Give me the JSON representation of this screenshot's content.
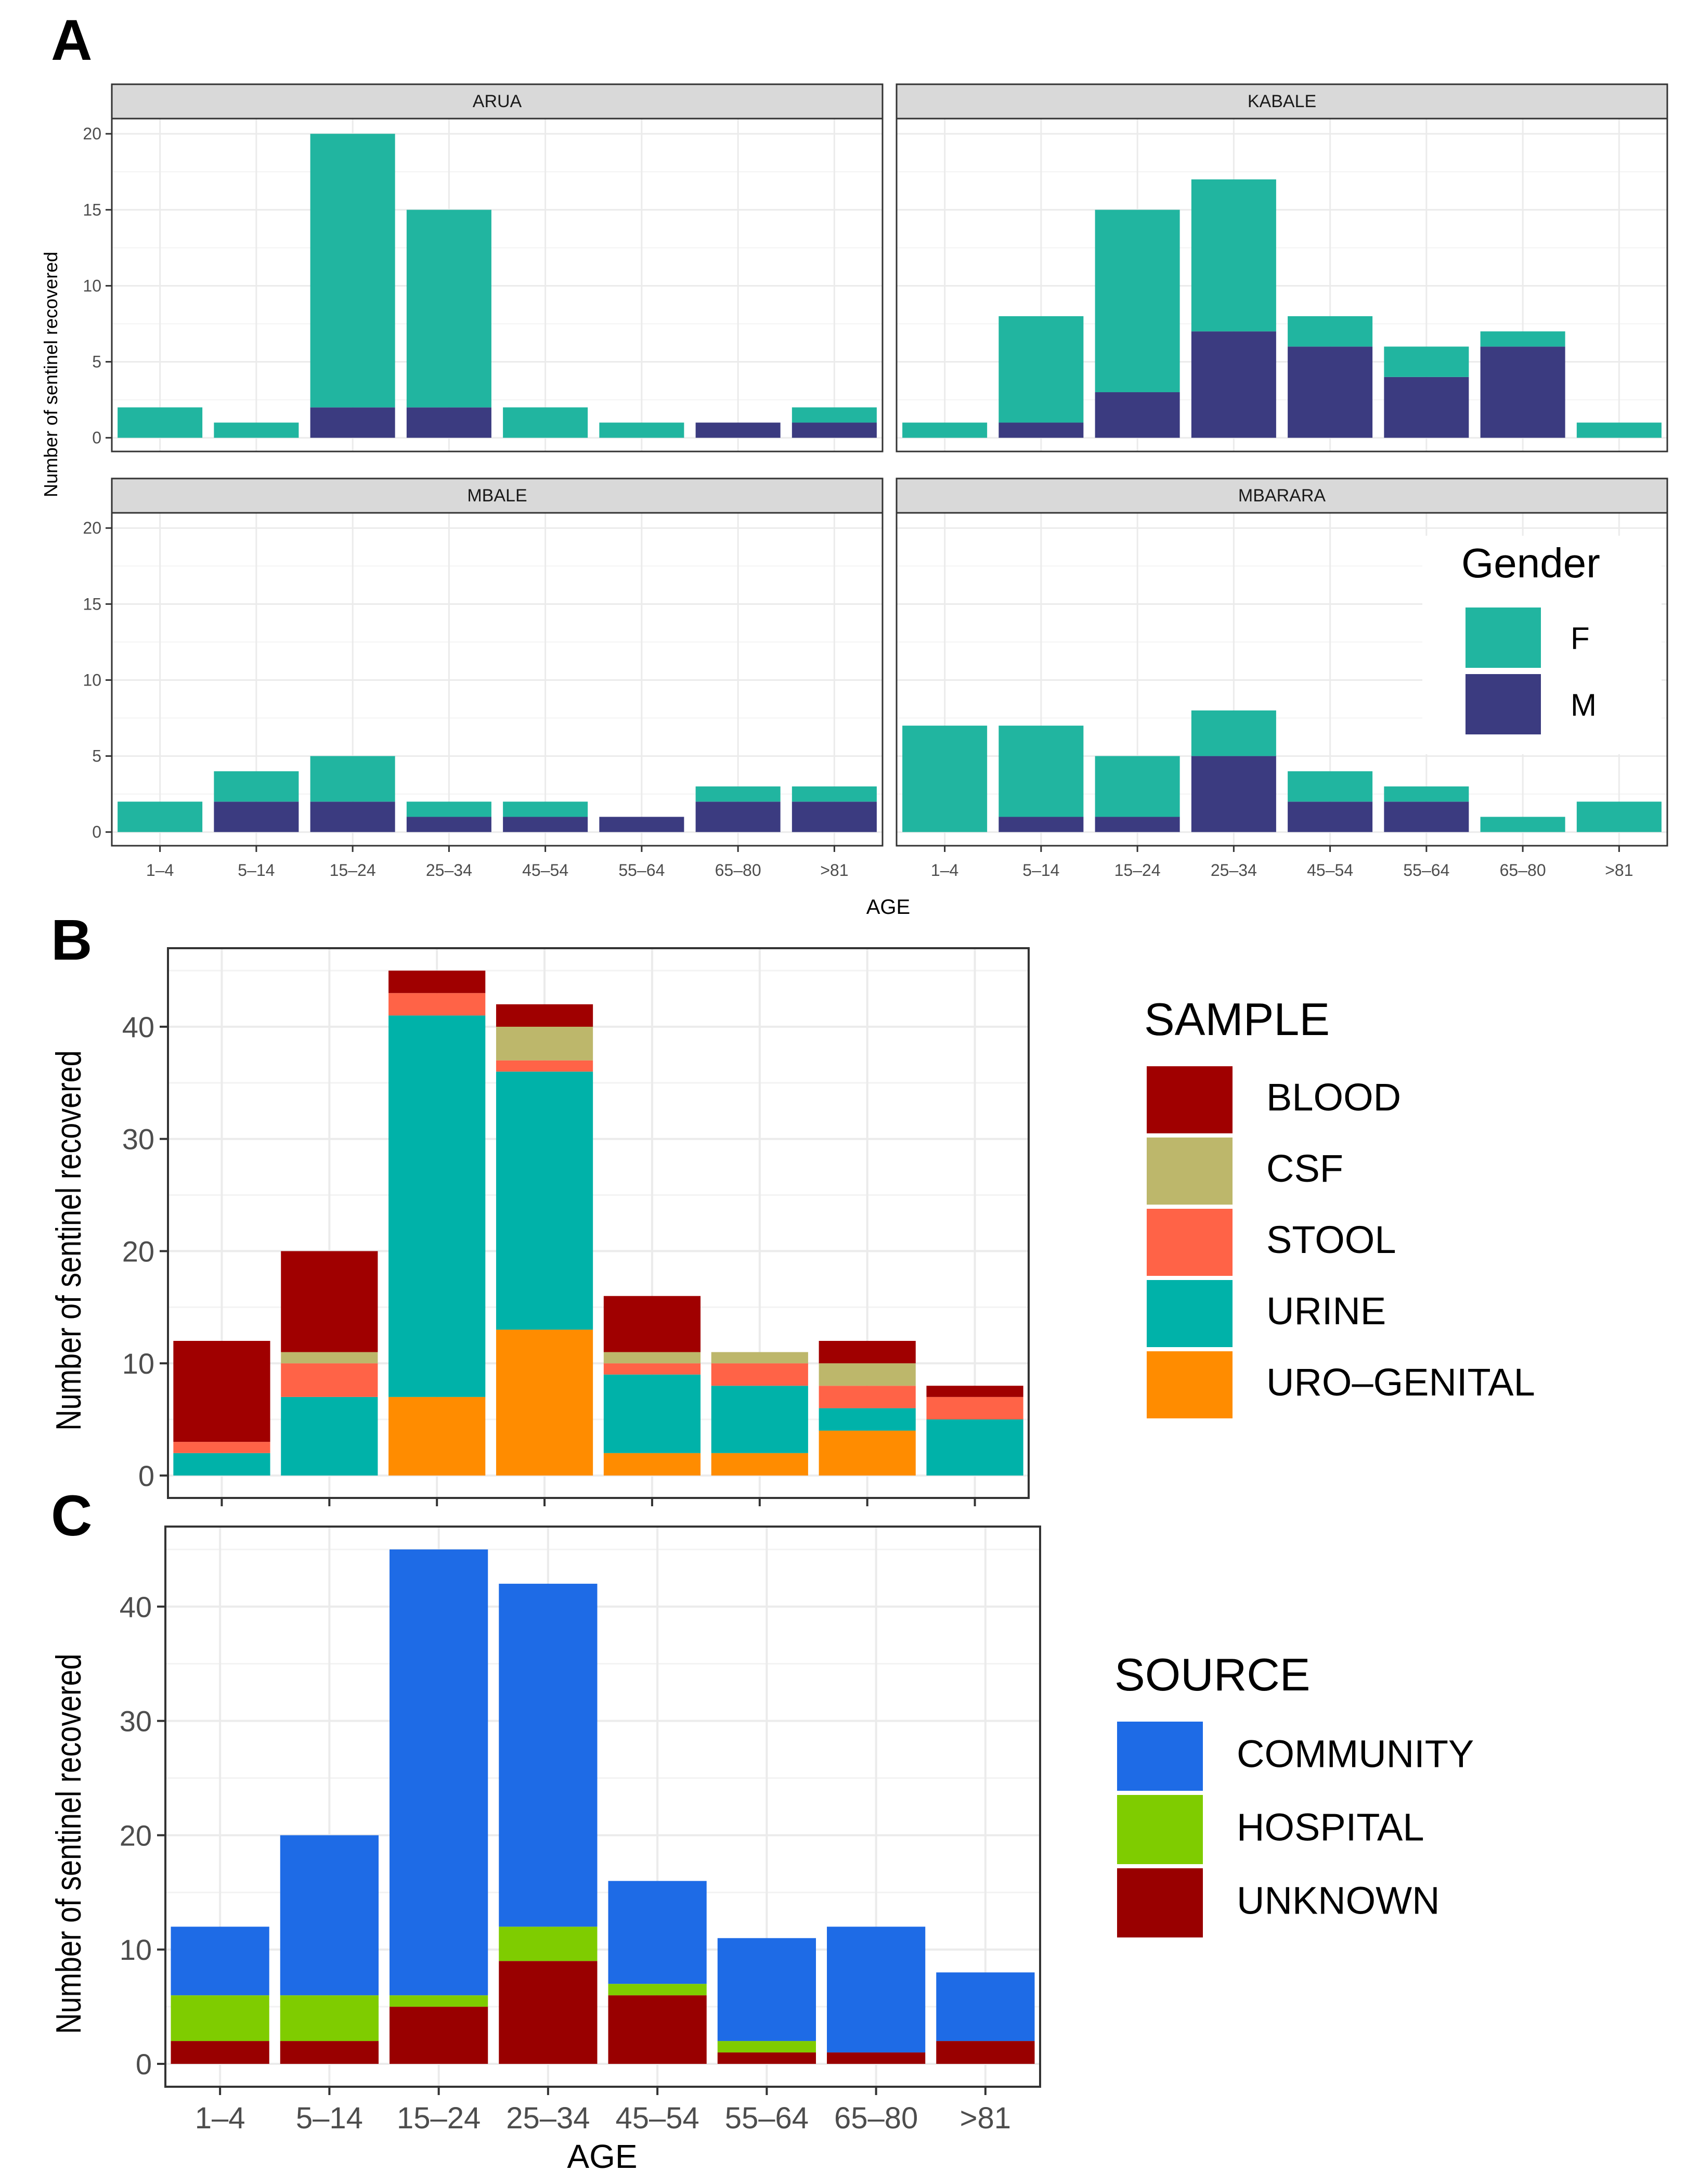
{
  "figure": {
    "panel_labels": [
      "A",
      "B",
      "C"
    ]
  },
  "chart_data": [
    {
      "type": "bar",
      "stacked": true,
      "faceted": true,
      "panel": "A",
      "xlabel": "AGE",
      "ylabel": "Number of sentinel recovered",
      "categories": [
        "1–4",
        "5–14",
        "15–24",
        "25–34",
        "45–54",
        "55–64",
        "65–80",
        ">81"
      ],
      "ylim": [
        0,
        21
      ],
      "yticks": [
        0,
        5,
        10,
        15,
        20
      ],
      "legend": {
        "title": "Gender",
        "placement": "inside-right",
        "entries": [
          {
            "label": "F",
            "color": "#21B5A0"
          },
          {
            "label": "M",
            "color": "#3B3B80"
          }
        ]
      },
      "facets": [
        {
          "name": "ARUA",
          "series": [
            {
              "name": "F",
              "values": [
                2,
                1,
                18,
                13,
                2,
                1,
                0,
                1
              ]
            },
            {
              "name": "M",
              "values": [
                0,
                0,
                2,
                2,
                0,
                0,
                1,
                1
              ]
            }
          ]
        },
        {
          "name": "KABALE",
          "series": [
            {
              "name": "F",
              "values": [
                1,
                7,
                12,
                10,
                2,
                2,
                1,
                1
              ]
            },
            {
              "name": "M",
              "values": [
                0,
                1,
                3,
                7,
                6,
                4,
                6,
                0
              ]
            }
          ]
        },
        {
          "name": "MBALE",
          "series": [
            {
              "name": "F",
              "values": [
                2,
                2,
                3,
                1,
                1,
                0,
                1,
                1
              ]
            },
            {
              "name": "M",
              "values": [
                0,
                2,
                2,
                1,
                1,
                1,
                2,
                2
              ]
            }
          ]
        },
        {
          "name": "MBARARA",
          "series": [
            {
              "name": "F",
              "values": [
                7,
                6,
                4,
                3,
                2,
                1,
                1,
                2
              ]
            },
            {
              "name": "M",
              "values": [
                0,
                1,
                1,
                5,
                2,
                2,
                0,
                0
              ]
            }
          ]
        }
      ]
    },
    {
      "type": "bar",
      "stacked": true,
      "panel": "B",
      "xlabel": "",
      "ylabel": "Number of sentinel recovered",
      "categories": [
        "1–4",
        "5–14",
        "15–24",
        "25–34",
        "45–54",
        "55–64",
        "65–80",
        ">81"
      ],
      "ylim": [
        -2,
        47
      ],
      "yticks": [
        0,
        10,
        20,
        30,
        40
      ],
      "legend": {
        "title": "SAMPLE",
        "placement": "right"
      },
      "series": [
        {
          "name": "URO–GENITAL",
          "color": "#FF8C00",
          "values": [
            0,
            0,
            7,
            13,
            2,
            2,
            4,
            0
          ]
        },
        {
          "name": "URINE",
          "color": "#00B2A9",
          "values": [
            2,
            7,
            34,
            23,
            7,
            6,
            2,
            5
          ]
        },
        {
          "name": "STOOL",
          "color": "#FF6347",
          "values": [
            1,
            3,
            2,
            1,
            1,
            2,
            2,
            2
          ]
        },
        {
          "name": "CSF",
          "color": "#BDB76B",
          "values": [
            0,
            1,
            0,
            3,
            1,
            1,
            2,
            0
          ]
        },
        {
          "name": "BLOOD",
          "color": "#A00000",
          "values": [
            9,
            9,
            2,
            2,
            5,
            0,
            2,
            1
          ]
        }
      ],
      "legend_order": [
        "BLOOD",
        "CSF",
        "STOOL",
        "URINE",
        "URO–GENITAL"
      ]
    },
    {
      "type": "bar",
      "stacked": true,
      "panel": "C",
      "xlabel": "AGE",
      "ylabel": "Number of sentinel recovered",
      "categories": [
        "1–4",
        "5–14",
        "15–24",
        "25–34",
        "45–54",
        "55–64",
        "65–80",
        ">81"
      ],
      "ylim": [
        -2,
        47
      ],
      "yticks": [
        0,
        10,
        20,
        30,
        40
      ],
      "legend": {
        "title": "SOURCE",
        "placement": "right"
      },
      "series": [
        {
          "name": "UNKNOWN",
          "color": "#990000",
          "values": [
            2,
            2,
            5,
            9,
            6,
            1,
            1,
            2
          ]
        },
        {
          "name": "HOSPITAL",
          "color": "#7FCC00",
          "values": [
            4,
            4,
            1,
            3,
            1,
            1,
            0,
            0
          ]
        },
        {
          "name": "COMMUNITY",
          "color": "#1E6BE6",
          "values": [
            6,
            14,
            39,
            30,
            9,
            9,
            11,
            6
          ]
        }
      ],
      "legend_order": [
        "COMMUNITY",
        "HOSPITAL",
        "UNKNOWN"
      ]
    }
  ]
}
